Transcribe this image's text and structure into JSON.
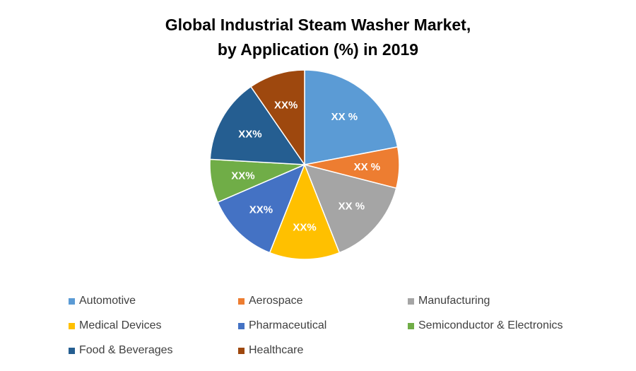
{
  "chart_data": {
    "type": "pie",
    "title": "Global Industrial Steam Washer Market,",
    "subtitle": "by Application (%) in 2019",
    "categories": [
      "Automotive",
      "Aerospace",
      "Manufacturing",
      "Medical Devices",
      "Pharmaceutical",
      "Semiconductor & Electronics",
      "Food & Beverages",
      "Healthcare"
    ],
    "values": [
      22,
      7,
      15,
      12,
      12.5,
      7.4,
      14.5,
      9.6
    ],
    "data_labels": [
      "XX %",
      "XX %",
      "XX %",
      "XX%",
      "XX%",
      "XX%",
      "XX%",
      "XX%"
    ],
    "colors": [
      "#5B9BD5",
      "#ED7D31",
      "#A5A5A5",
      "#FFC000",
      "#4472C4",
      "#70AD47",
      "#255E91",
      "#9E480E"
    ],
    "legend_position": "bottom"
  }
}
